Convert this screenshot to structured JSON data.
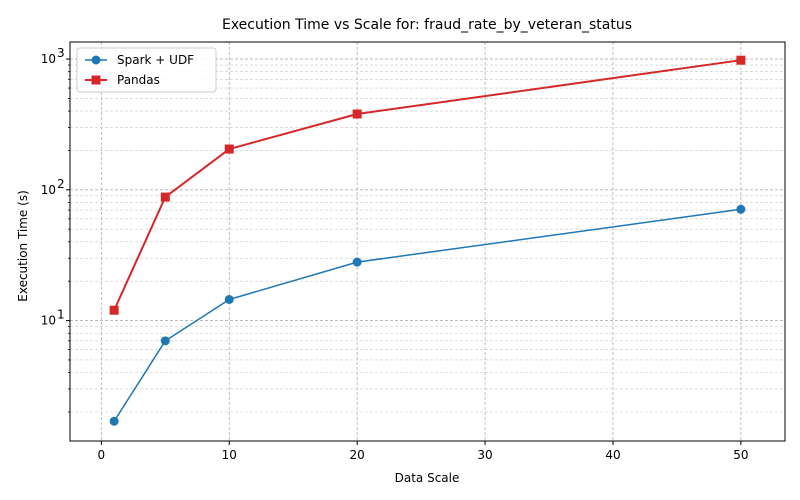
{
  "chart_data": {
    "type": "line",
    "title": "Execution Time vs Scale for: fraud_rate_by_veteran_status",
    "xlabel": "Data Scale",
    "ylabel": "Execution Time (s)",
    "x": [
      1,
      5,
      10,
      20,
      50
    ],
    "xlim": [
      -2.45,
      53.45
    ],
    "xticks": [
      0,
      10,
      20,
      30,
      40,
      50
    ],
    "xtick_labels": [
      "0",
      "10",
      "20",
      "30",
      "40",
      "50"
    ],
    "yscale": "log",
    "ylim": [
      1.2,
      1350
    ],
    "yticks": [
      10,
      100,
      1000
    ],
    "ytick_labels": [
      "10",
      "10",
      "10"
    ],
    "ytick_exponents": [
      "1",
      "2",
      "3"
    ],
    "grid": true,
    "legend_position": "upper-left",
    "series": [
      {
        "name": "Spark + UDF",
        "values": [
          1.7,
          7.0,
          14.5,
          28.0,
          71.0
        ],
        "color": "#1f77b4",
        "marker": "circle"
      },
      {
        "name": "Pandas",
        "values": [
          12.0,
          88.0,
          205.0,
          380.0,
          980.0
        ],
        "color": "#d62728",
        "marker": "square"
      }
    ]
  }
}
